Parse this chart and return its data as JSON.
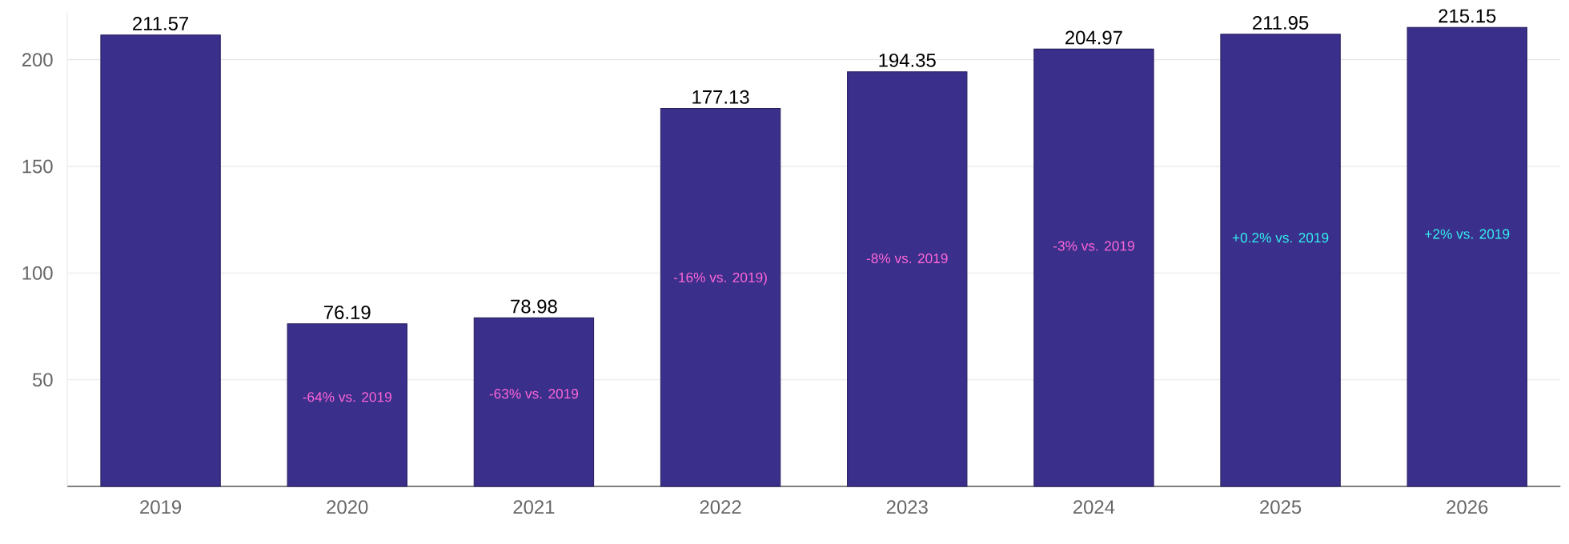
{
  "chart_data": {
    "type": "bar",
    "categories": [
      "2019",
      "2020",
      "2021",
      "2022",
      "2023",
      "2024",
      "2025",
      "2026"
    ],
    "values": [
      211.57,
      76.19,
      78.98,
      177.13,
      194.35,
      204.97,
      211.95,
      215.15
    ],
    "color": "#3a2f8a",
    "ylim": [
      0,
      222
    ],
    "yticks": [
      50,
      100,
      150,
      200
    ],
    "grid": "y",
    "data_labels": true,
    "annotations": [
      "-64% vs. 2019",
      "-63% vs. 2019",
      "-16% vs. 2019)",
      "-8% vs. 2019",
      "-3% vs. 2019",
      "+0.2% vs. 2019",
      "+2% vs. 2019"
    ]
  }
}
